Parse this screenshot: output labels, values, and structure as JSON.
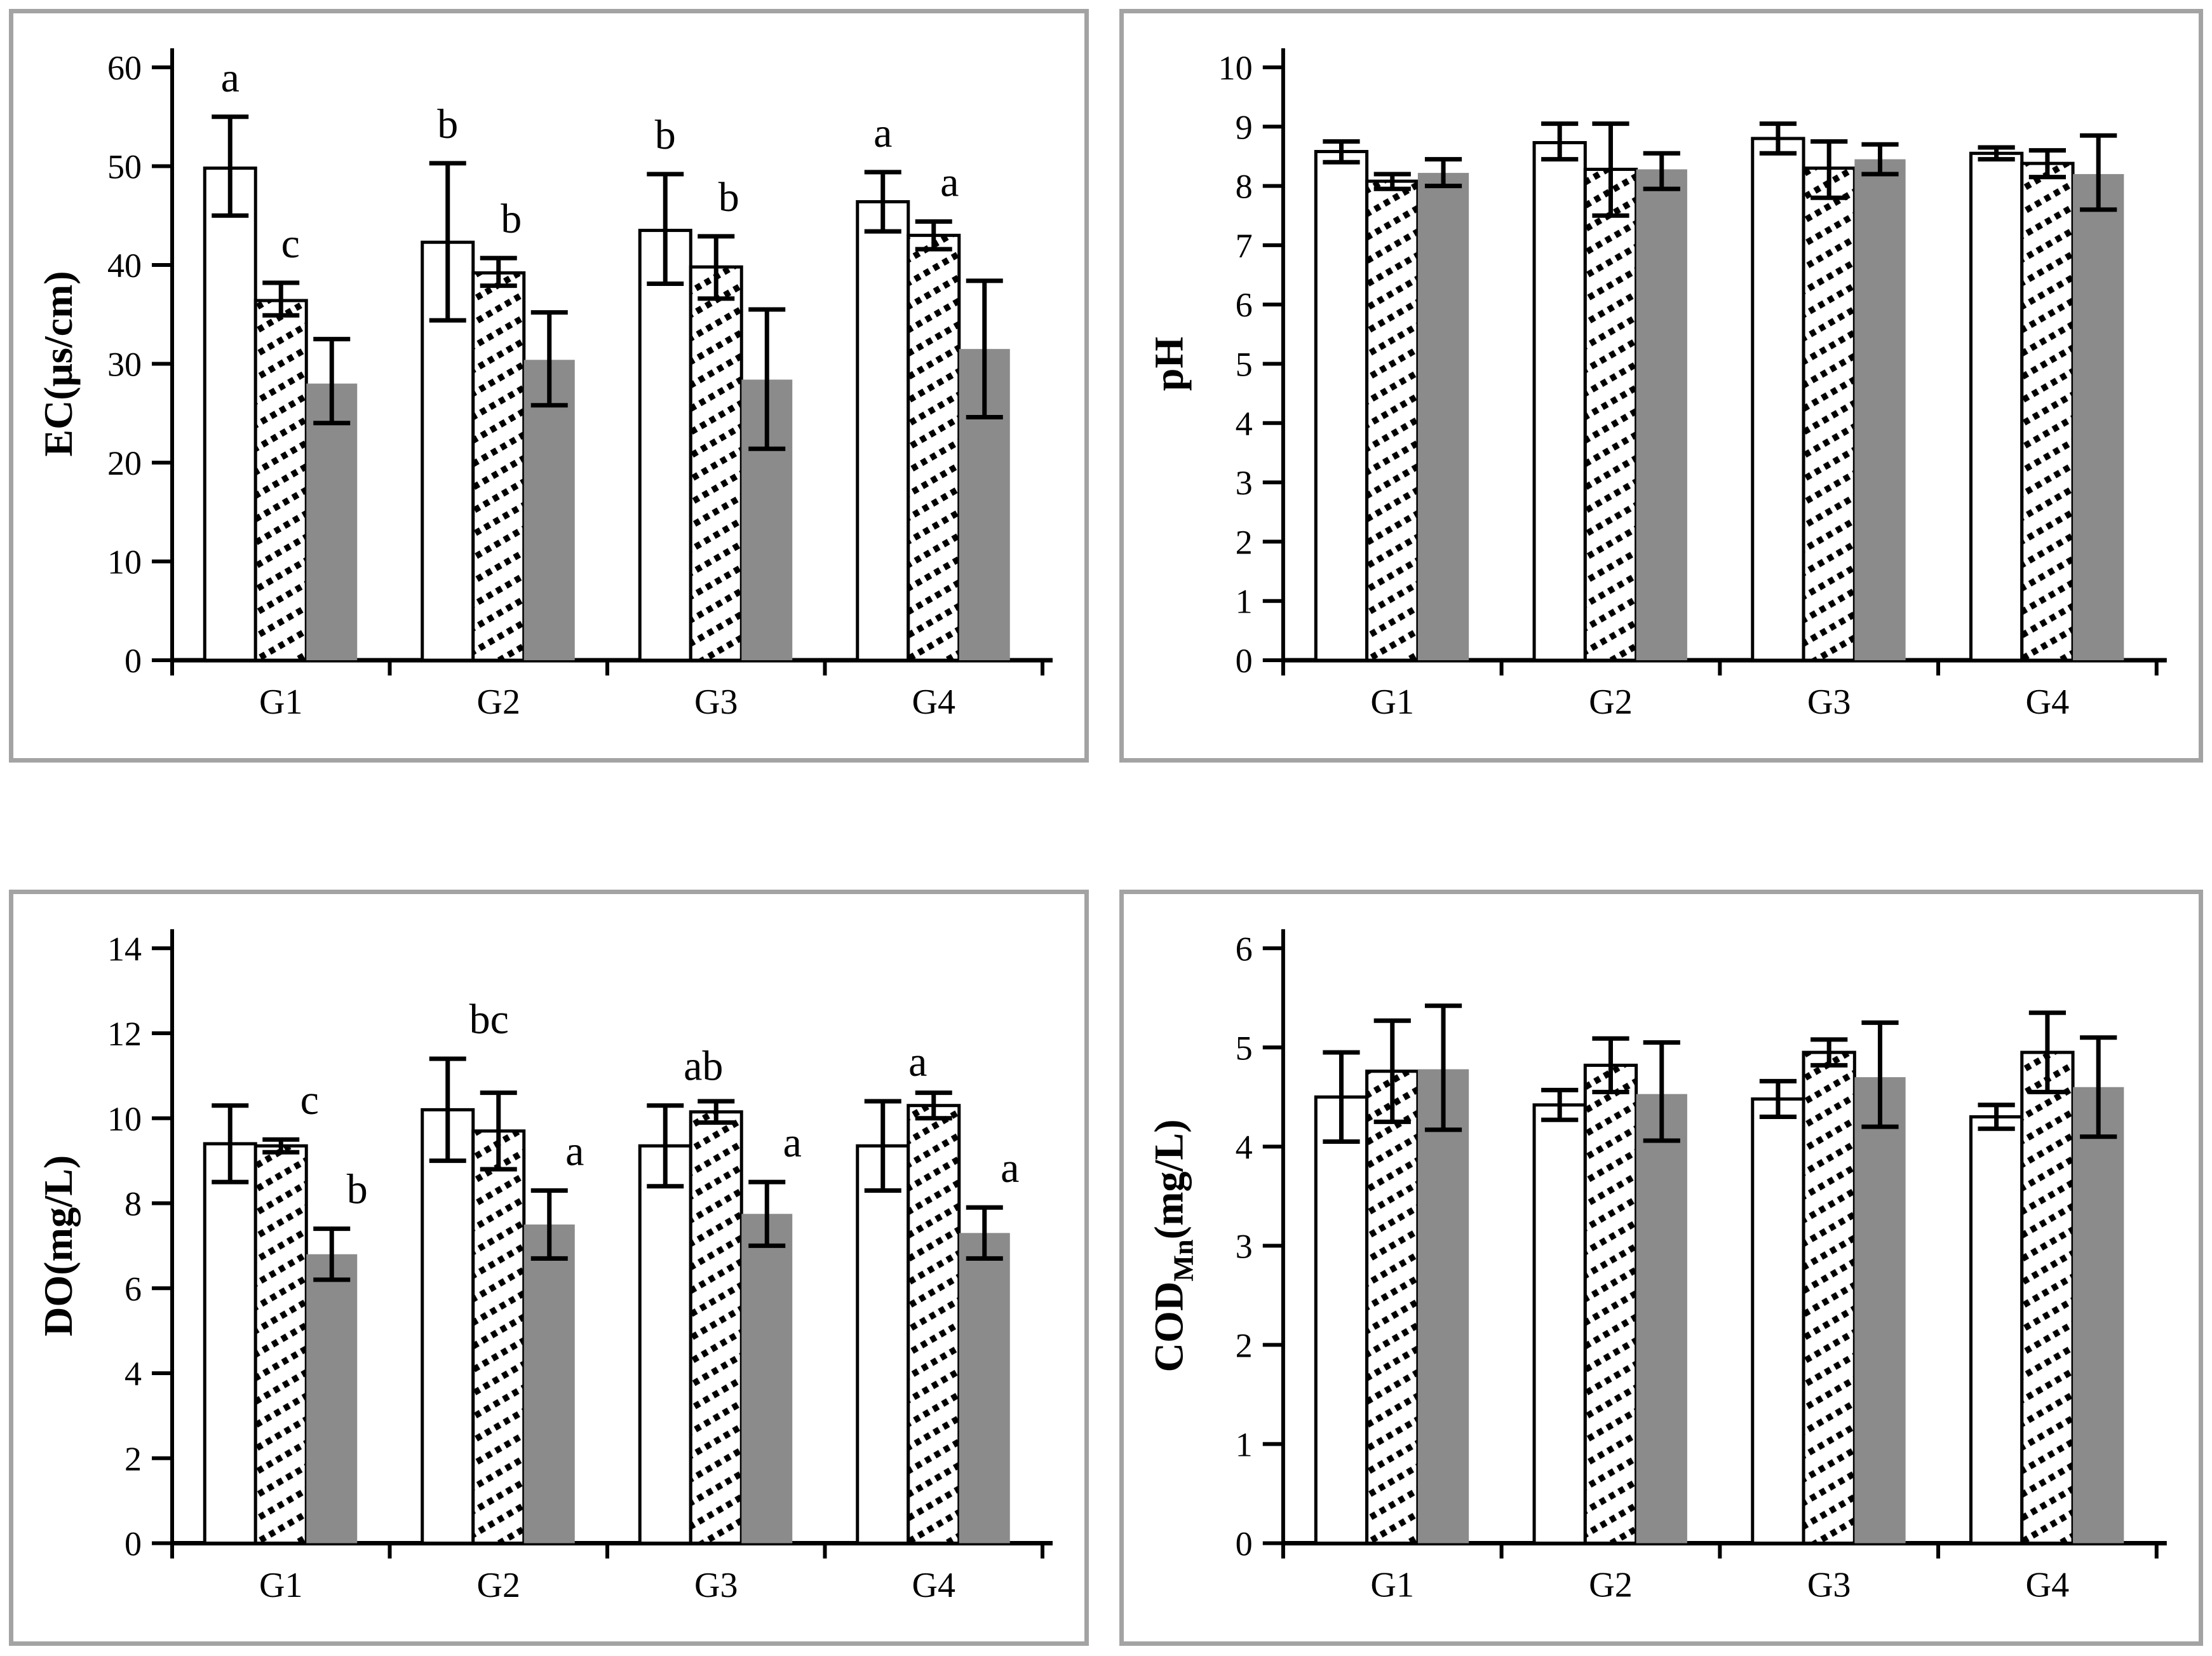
{
  "colors": {
    "bar_white": "#ffffff",
    "bar_gray": "#8b8b8b",
    "hatch_ink": "#000000",
    "axis": "#000000",
    "panel_border": "#a3a3a3",
    "background": "#ffffff"
  },
  "chart_data": [
    {
      "type": "bar",
      "position": "top-left",
      "title": "",
      "xlabel": "",
      "ylabel": {
        "pre": "EC(μs/cm)",
        "sub": "",
        "post": ""
      },
      "ylim": [
        0,
        60
      ],
      "ytick_step": 10,
      "grid": false,
      "legend": "none",
      "categories": [
        "G1",
        "G2",
        "G3",
        "G4"
      ],
      "series": [
        {
          "name": "white-open-bar",
          "values": [
            49.8,
            42.3,
            43.5,
            46.4
          ],
          "err_lo": [
            45.0,
            34.4,
            38.1,
            43.4
          ],
          "err_hi": [
            55.0,
            50.3,
            49.2,
            49.4
          ]
        },
        {
          "name": "hatched-bar",
          "values": [
            36.4,
            39.2,
            39.8,
            43.0
          ],
          "err_lo": [
            34.9,
            37.9,
            36.6,
            41.6
          ],
          "err_hi": [
            38.2,
            40.7,
            42.9,
            44.4
          ]
        },
        {
          "name": "solid-gray-bar",
          "values": [
            28.0,
            30.4,
            28.4,
            31.5
          ],
          "err_lo": [
            24.0,
            25.8,
            21.4,
            24.6
          ],
          "err_hi": [
            32.5,
            35.2,
            35.5,
            38.4
          ]
        }
      ],
      "sig_letters": [
        {
          "group": "G1",
          "series": 0,
          "text": "a",
          "dx": 0
        },
        {
          "group": "G1",
          "series": 1,
          "text": "c",
          "dx": 15
        },
        {
          "group": "G2",
          "series": 0,
          "text": "b",
          "dx": 0
        },
        {
          "group": "G2",
          "series": 1,
          "text": "b",
          "dx": 20
        },
        {
          "group": "G3",
          "series": 0,
          "text": "b",
          "dx": 0
        },
        {
          "group": "G3",
          "series": 1,
          "text": "b",
          "dx": 20
        },
        {
          "group": "G4",
          "series": 0,
          "text": "a",
          "dx": 0
        },
        {
          "group": "G4",
          "series": 1,
          "text": "a",
          "dx": 25
        }
      ]
    },
    {
      "type": "bar",
      "position": "top-right",
      "title": "",
      "xlabel": "",
      "ylabel": {
        "pre": "pH",
        "sub": "",
        "post": ""
      },
      "ylim": [
        0,
        10
      ],
      "ytick_step": 1,
      "grid": false,
      "legend": "none",
      "categories": [
        "G1",
        "G2",
        "G3",
        "G4"
      ],
      "series": [
        {
          "name": "white-open-bar",
          "values": [
            8.58,
            8.73,
            8.8,
            8.55
          ],
          "err_lo": [
            8.4,
            8.45,
            8.55,
            8.45
          ],
          "err_hi": [
            8.75,
            9.05,
            9.05,
            8.65
          ]
        },
        {
          "name": "hatched-bar",
          "values": [
            8.08,
            8.28,
            8.3,
            8.38
          ],
          "err_lo": [
            7.95,
            7.5,
            7.8,
            8.15
          ],
          "err_hi": [
            8.2,
            9.05,
            8.75,
            8.6
          ]
        },
        {
          "name": "solid-gray-bar",
          "values": [
            8.22,
            8.28,
            8.45,
            8.2
          ],
          "err_lo": [
            8.0,
            7.95,
            8.2,
            7.6
          ],
          "err_hi": [
            8.45,
            8.55,
            8.7,
            8.85
          ]
        }
      ],
      "sig_letters": []
    },
    {
      "type": "bar",
      "position": "bottom-left",
      "title": "",
      "xlabel": "",
      "ylabel": {
        "pre": "DO(mg/L)",
        "sub": "",
        "post": ""
      },
      "ylim": [
        0,
        14
      ],
      "ytick_step": 2,
      "grid": false,
      "legend": "none",
      "categories": [
        "G1",
        "G2",
        "G3",
        "G4"
      ],
      "series": [
        {
          "name": "white-open-bar",
          "values": [
            9.4,
            10.2,
            9.35,
            9.35
          ],
          "err_lo": [
            8.5,
            9.0,
            8.4,
            8.3
          ],
          "err_hi": [
            10.3,
            11.4,
            10.3,
            10.4
          ]
        },
        {
          "name": "hatched-bar",
          "values": [
            9.35,
            9.7,
            10.15,
            10.3
          ],
          "err_lo": [
            9.2,
            8.8,
            9.9,
            10.0
          ],
          "err_hi": [
            9.5,
            10.6,
            10.4,
            10.6
          ]
        },
        {
          "name": "solid-gray-bar",
          "values": [
            6.8,
            7.5,
            7.75,
            7.3
          ],
          "err_lo": [
            6.2,
            6.7,
            7.0,
            6.7
          ],
          "err_hi": [
            7.4,
            8.3,
            8.5,
            7.9
          ]
        }
      ],
      "sig_letters": [
        {
          "group": "G1",
          "series": 1,
          "text": "c",
          "dx": 45
        },
        {
          "group": "G1",
          "series": 2,
          "text": "b",
          "dx": 40
        },
        {
          "group": "G2",
          "series": 0,
          "text": "bc",
          "dx": 65
        },
        {
          "group": "G2",
          "series": 2,
          "text": "a",
          "dx": 40
        },
        {
          "group": "G3",
          "series": 0,
          "text": "ab",
          "dx": 60
        },
        {
          "group": "G3",
          "series": 2,
          "text": "a",
          "dx": 40
        },
        {
          "group": "G4",
          "series": 0,
          "text": "a",
          "dx": 55
        },
        {
          "group": "G4",
          "series": 2,
          "text": "a",
          "dx": 40
        }
      ]
    },
    {
      "type": "bar",
      "position": "bottom-right",
      "title": "",
      "xlabel": "",
      "ylabel": {
        "pre": "COD",
        "sub": "Mn",
        "post": "(mg/L)"
      },
      "ylim": [
        0,
        6
      ],
      "ytick_step": 1,
      "grid": false,
      "legend": "none",
      "categories": [
        "G1",
        "G2",
        "G3",
        "G4"
      ],
      "series": [
        {
          "name": "white-open-bar",
          "values": [
            4.5,
            4.42,
            4.48,
            4.3
          ],
          "err_lo": [
            4.05,
            4.27,
            4.3,
            4.18
          ],
          "err_hi": [
            4.95,
            4.57,
            4.66,
            4.42
          ]
        },
        {
          "name": "hatched-bar",
          "values": [
            4.76,
            4.82,
            4.95,
            4.95
          ],
          "err_lo": [
            4.25,
            4.55,
            4.82,
            4.55
          ],
          "err_hi": [
            5.27,
            5.09,
            5.08,
            5.35
          ]
        },
        {
          "name": "solid-gray-bar",
          "values": [
            4.78,
            4.53,
            4.7,
            4.6
          ],
          "err_lo": [
            4.17,
            4.06,
            4.2,
            4.1
          ],
          "err_hi": [
            5.42,
            5.05,
            5.25,
            5.1
          ]
        }
      ],
      "sig_letters": []
    }
  ]
}
